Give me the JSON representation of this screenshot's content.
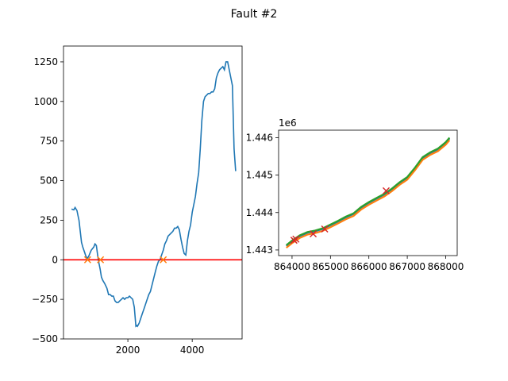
{
  "figure": {
    "title": "Fault #2"
  },
  "chart_data": [
    {
      "type": "line",
      "title": "",
      "xlabel": "",
      "ylabel": "",
      "xlim": [
        0,
        5550
      ],
      "ylim": [
        -500,
        1350
      ],
      "grid": false,
      "xticks": [
        2000,
        4000
      ],
      "xtick_labels": [
        "2000",
        "4000"
      ],
      "yticks": [
        -500,
        -250,
        0,
        250,
        500,
        750,
        1000,
        1250
      ],
      "ytick_labels": [
        "−500",
        "−250",
        "0",
        "250",
        "500",
        "750",
        "1000",
        "1250"
      ],
      "colors": {
        "series": "#1f77b4",
        "baseline": "#ff0000",
        "markers": "#ff7f0e"
      },
      "series": [
        {
          "x": [
            250,
            320,
            360,
            390,
            420,
            450,
            480,
            520,
            560,
            600,
            650,
            700,
            740,
            780,
            820,
            860,
            900,
            940,
            980,
            1020,
            1060,
            1100,
            1140,
            1180,
            1220,
            1280,
            1350,
            1400,
            1450,
            1500,
            1550,
            1600,
            1650,
            1700,
            1750,
            1800,
            1850,
            1900,
            1950,
            2000,
            2050,
            2100,
            2150,
            2200,
            2250,
            2280,
            2300,
            2350,
            2400,
            2450,
            2500,
            2550,
            2600,
            2650,
            2700,
            2750,
            2800,
            2850,
            2900,
            2950,
            3000,
            3050,
            3100,
            3150,
            3200,
            3250,
            3300,
            3350,
            3400,
            3450,
            3500,
            3550,
            3600,
            3650,
            3700,
            3750,
            3800,
            3850,
            3900,
            3950,
            4000,
            4050,
            4100,
            4150,
            4200,
            4250,
            4300,
            4350,
            4400,
            4450,
            4500,
            4550,
            4600,
            4650,
            4700,
            4750,
            4800,
            4850,
            4900,
            4950,
            5000,
            5050,
            5100,
            5150,
            5200,
            5250,
            5300,
            5350
          ],
          "y": [
            320,
            315,
            330,
            320,
            310,
            280,
            250,
            180,
            110,
            80,
            50,
            20,
            10,
            20,
            40,
            60,
            70,
            80,
            100,
            90,
            30,
            -20,
            -60,
            -110,
            -130,
            -150,
            -180,
            -220,
            -220,
            -230,
            -230,
            -260,
            -270,
            -270,
            -260,
            -250,
            -240,
            -250,
            -240,
            -240,
            -230,
            -240,
            -250,
            -300,
            -420,
            -415,
            -420,
            -400,
            -370,
            -340,
            -310,
            -280,
            -250,
            -220,
            -200,
            -160,
            -120,
            -80,
            -40,
            -10,
            0,
            30,
            60,
            100,
            120,
            150,
            160,
            170,
            180,
            200,
            200,
            210,
            190,
            130,
            80,
            40,
            30,
            120,
            180,
            220,
            300,
            350,
            400,
            480,
            550,
            700,
            880,
            1000,
            1030,
            1040,
            1050,
            1050,
            1060,
            1060,
            1080,
            1150,
            1180,
            1200,
            1210,
            1220,
            1200,
            1250,
            1250,
            1200,
            1150,
            1100,
            700,
            560
          ],
          "name": ""
        }
      ],
      "baseline_y": 0,
      "markers": {
        "symbol": "x",
        "x": [
          750,
          1150,
          3100
        ],
        "y": [
          0,
          0,
          0
        ]
      }
    },
    {
      "type": "line",
      "title": "",
      "xlabel": "",
      "ylabel": "",
      "offset_text": "1e6",
      "xlim": [
        863650,
        868300
      ],
      "ylim": [
        1442850,
        1446200
      ],
      "grid": false,
      "xticks": [
        864000,
        865000,
        866000,
        867000,
        868000
      ],
      "xtick_labels": [
        "864000",
        "865000",
        "866000",
        "867000",
        "868000"
      ],
      "yticks": [
        1443000,
        1444000,
        1445000,
        1446000
      ],
      "ytick_labels": [
        "1.443",
        "1.444",
        "1.445",
        "1.446"
      ],
      "colors": {
        "markers": "#d62728"
      },
      "series": [
        {
          "color": "#1f77b4",
          "x": [
            863850,
            864000,
            864200,
            864400,
            864600,
            864800,
            865000,
            865200,
            865400,
            865600,
            865800,
            866000,
            866200,
            866400,
            866600,
            866800,
            867000,
            867200,
            867400,
            867600,
            867800,
            868000,
            868100
          ],
          "y": [
            1443110,
            1443230,
            1443370,
            1443460,
            1443500,
            1443560,
            1443660,
            1443760,
            1443870,
            1443960,
            1444130,
            1444260,
            1444370,
            1444480,
            1444620,
            1444790,
            1444930,
            1445180,
            1445460,
            1445590,
            1445690,
            1445860,
            1445980
          ]
        },
        {
          "color": "#ff7f0e",
          "x": [
            863850,
            864000,
            864200,
            864400,
            864600,
            864800,
            865000,
            865200,
            865400,
            865600,
            865800,
            866000,
            866200,
            866400,
            866600,
            866800,
            867000,
            867200,
            867400,
            867600,
            867800,
            868000,
            868100
          ],
          "y": [
            1443060,
            1443180,
            1443320,
            1443410,
            1443450,
            1443510,
            1443610,
            1443710,
            1443820,
            1443910,
            1444080,
            1444210,
            1444320,
            1444430,
            1444570,
            1444740,
            1444880,
            1445130,
            1445410,
            1445540,
            1445640,
            1445810,
            1445930
          ]
        },
        {
          "color": "#2ca02c",
          "x": [
            863850,
            864000,
            864200,
            864400,
            864600,
            864800,
            865000,
            865200,
            865400,
            865600,
            865800,
            866000,
            866200,
            866400,
            866600,
            866800,
            867000,
            867200,
            867400,
            867600,
            867800,
            868000,
            868100
          ],
          "y": [
            1443130,
            1443250,
            1443390,
            1443480,
            1443520,
            1443580,
            1443680,
            1443780,
            1443890,
            1443980,
            1444150,
            1444280,
            1444390,
            1444500,
            1444640,
            1444810,
            1444950,
            1445200,
            1445480,
            1445610,
            1445710,
            1445880,
            1446000
          ]
        }
      ],
      "markers": {
        "symbol": "x",
        "x": [
          864050,
          864100,
          864550,
          864850,
          866450
        ],
        "y": [
          1443260,
          1443290,
          1443430,
          1443560,
          1444580
        ]
      }
    }
  ]
}
